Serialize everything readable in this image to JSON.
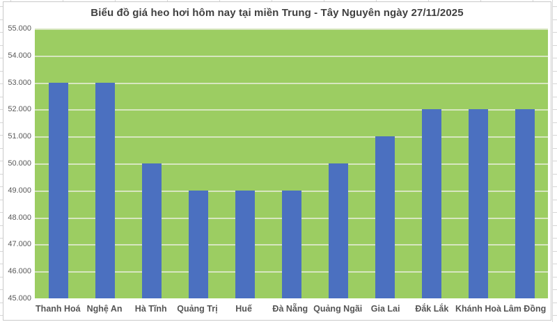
{
  "chart_data": {
    "type": "bar",
    "title": "Biểu đồ giá heo hơi hôm nay tại miền Trung - Tây Nguyên ngày 27/11/2025",
    "categories": [
      "Thanh Hoá",
      "Nghệ An",
      "Hà Tĩnh",
      "Quảng Trị",
      "Huế",
      "Đà Nẵng",
      "Quảng Ngãi",
      "Gia Lai",
      "Đắk Lắk",
      "Khánh Hoà",
      "Lâm Đồng"
    ],
    "values": [
      53000,
      53000,
      50000,
      49000,
      49000,
      49000,
      50000,
      51000,
      52000,
      52000,
      52000
    ],
    "y_tick_labels": [
      "55.000",
      "54.000",
      "53.000",
      "52.000",
      "51.000",
      "50.000",
      "49.000",
      "48.000",
      "47.000",
      "46.000",
      "45.000"
    ],
    "ylim": [
      45000,
      55000
    ],
    "xlabel": "",
    "ylabel": "",
    "grid": true,
    "legend": "none"
  },
  "colors": {
    "bar": "#4b70c0",
    "plot_background": "#9ccd62",
    "gridline": "#d7e6c0",
    "title_text": "#404040",
    "axis_text": "#595959",
    "chart_border": "#c9c9c9"
  }
}
